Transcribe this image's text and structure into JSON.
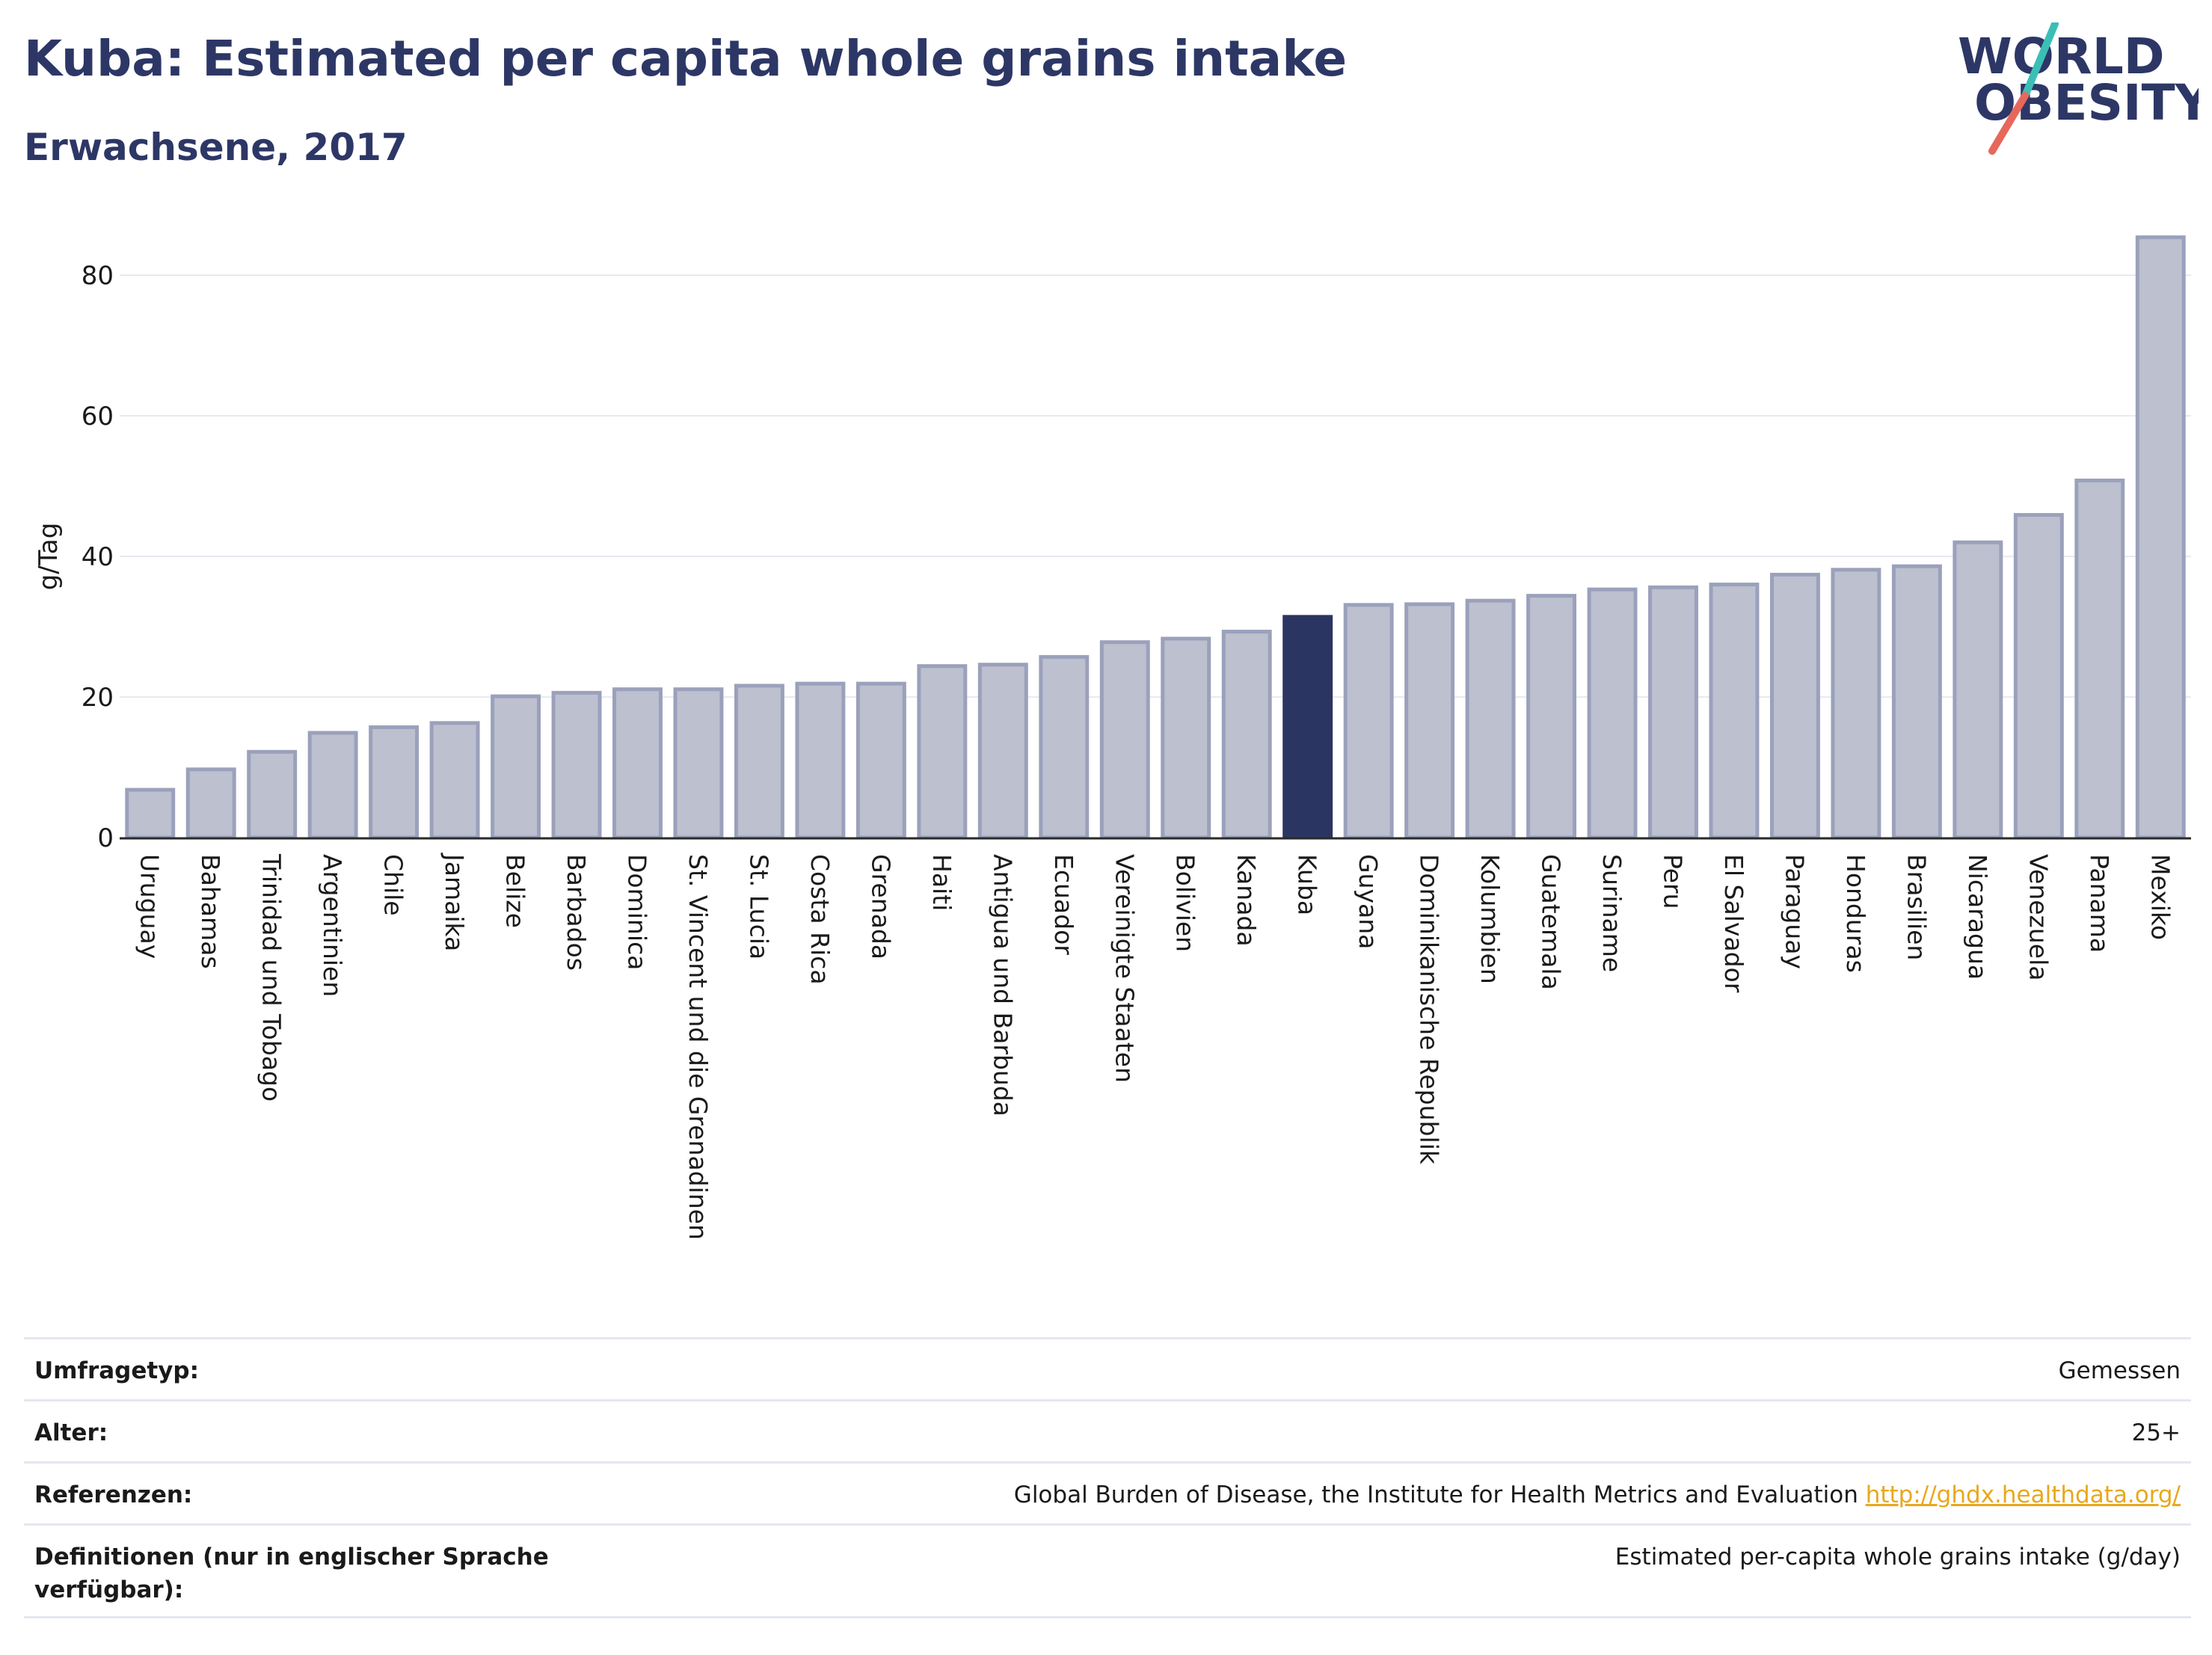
{
  "header": {
    "title": "Kuba: Estimated per capita whole grains intake",
    "subtitle": "Erwachsene, 2017"
  },
  "logo": {
    "line1": "WORLD",
    "line2": "OBESITY"
  },
  "colors": {
    "bar": "#bcc0cf",
    "bar_stroke": "#9ba1bb",
    "highlight": "#2b3561",
    "grid": "#e8eaf0",
    "axis_text": "#1a1a1a"
  },
  "chart_data": {
    "type": "bar",
    "ylabel": "g/Tag",
    "ylim": [
      0,
      88
    ],
    "yticks": [
      0,
      20,
      40,
      60,
      80
    ],
    "highlight": "Kuba",
    "grid": true,
    "categories": [
      "Uruguay",
      "Bahamas",
      "Trinidad und Tobago",
      "Argentinien",
      "Chile",
      "Jamaika",
      "Belize",
      "Barbados",
      "Dominica",
      "St. Vincent und die Grenadinen",
      "St. Lucia",
      "Costa Rica",
      "Grenada",
      "Haiti",
      "Antigua und Barbuda",
      "Ecuador",
      "Vereinigte Staaten",
      "Bolivien",
      "Kanada",
      "Kuba",
      "Guyana",
      "Dominikanische Republik",
      "Kolumbien",
      "Guatemala",
      "Suriname",
      "Peru",
      "El Salvador",
      "Paraguay",
      "Honduras",
      "Brasilien",
      "Nicaragua",
      "Venezuela",
      "Panama",
      "Mexiko"
    ],
    "values": [
      6.8,
      9.7,
      12.2,
      14.9,
      15.7,
      16.3,
      20.1,
      20.6,
      21.1,
      21.1,
      21.6,
      21.9,
      21.9,
      24.4,
      24.6,
      25.7,
      27.8,
      28.3,
      29.3,
      31.4,
      33.1,
      33.2,
      33.7,
      34.4,
      35.3,
      35.6,
      36.0,
      37.4,
      38.1,
      38.6,
      42.0,
      45.9,
      50.8,
      85.4
    ]
  },
  "info": {
    "survey_label": "Umfragetyp:",
    "survey_value": "Gemessen",
    "age_label": "Alter:",
    "age_value": "25+",
    "ref_label": "Referenzen:",
    "ref_value": "Global Burden of Disease, the Institute for Health Metrics and Evaluation",
    "ref_link": "http://ghdx.healthdata.org/",
    "def_label": "Definitionen (nur in englischer Sprache verfügbar):",
    "def_value": "Estimated per-capita whole grains intake (g/day)"
  }
}
